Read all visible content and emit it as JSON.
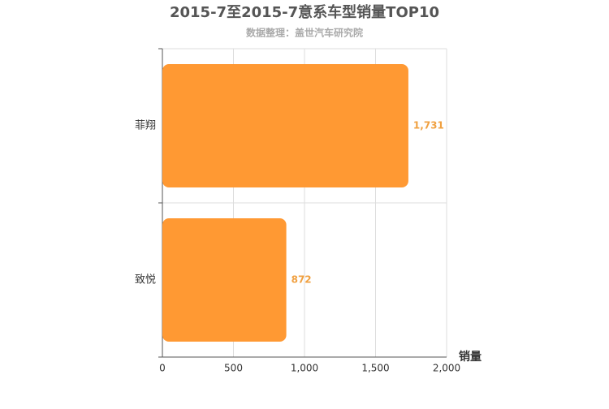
{
  "chart_data": {
    "type": "bar",
    "orientation": "horizontal",
    "title": "2015-7至2015-7意系车型销量TOP10",
    "subtitle": "数据整理：盖世汽车研究院",
    "xlabel": "销量",
    "categories": [
      "菲翔",
      "致悦"
    ],
    "values": [
      1731,
      872
    ],
    "value_labels": [
      "1,731",
      "872"
    ],
    "color": "#ff9933",
    "xlim": [
      0,
      2000
    ],
    "xticks": [
      0,
      500,
      {
        "value": 1000,
        "label": "1,000"
      },
      {
        "value": 1500,
        "label": "1,500"
      },
      {
        "value": 2000,
        "label": "2,000"
      }
    ],
    "grid": true
  }
}
